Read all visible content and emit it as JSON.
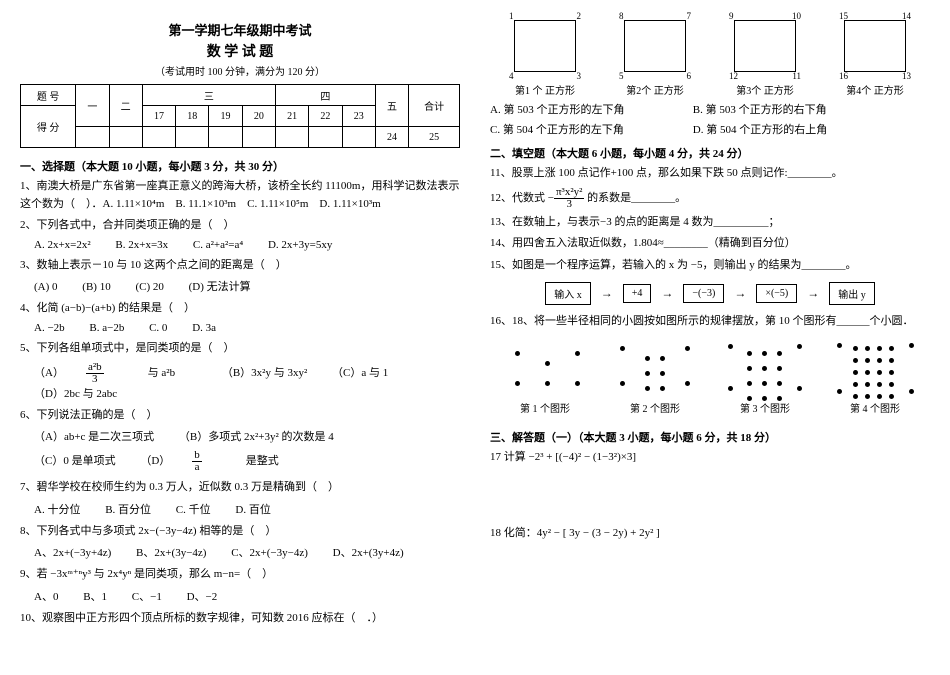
{
  "header": {
    "title": "第一学期七年级期中考试",
    "subject": "数 学 试 题",
    "note": "（考试用时 100 分钟，满分为 120 分）"
  },
  "scoreTable": {
    "r1": [
      "题 号",
      "一",
      "二",
      "三",
      "",
      "",
      "",
      "四",
      "",
      "",
      "五",
      "合计"
    ],
    "r2": [
      "得 分",
      "",
      "",
      "17",
      "18",
      "19",
      "20",
      "21",
      "22",
      "23",
      "24",
      "25"
    ],
    "r3": [
      "",
      "",
      "",
      "",
      "",
      "",
      "",
      "",
      "",
      "",
      "",
      ""
    ]
  },
  "section1": {
    "heading": "一、选择题（本大题 10 小题，每小题 3 分，共 30 分）",
    "q1": "1、南澳大桥是广东省第一座真正意义的跨海大桥，该桥全长约 11100m，用科学记数法表示这个数为（　）．A. 1.11×10⁴m　B. 11.1×10³m　C. 1.11×10⁵m　D. 1.11×10³m",
    "q2": "2、下列各式中，合并同类项正确的是（　）",
    "q2o": [
      "A. 2x+x=2x²",
      "B. 2x+x=3x",
      "C. a²+a²=a⁴",
      "D. 2x+3y=5xy"
    ],
    "q3": "3、数轴上表示－10 与 10 这两个点之间的距离是（　）",
    "q3o": [
      "(A) 0",
      "(B) 10",
      "(C) 20",
      "(D) 无法计算"
    ],
    "q4": "4、化简 (a−b)−(a+b) 的结果是（　）",
    "q4o": [
      "A. −2b",
      "B. a−2b",
      "C. 0",
      "D. 3a"
    ],
    "q5": "5、下列各组单项式中，是同类项的是（　）",
    "q5o_a_pre": "（A）",
    "q5o_a_num": "a²b",
    "q5o_a_den": "3",
    "q5o_a_post": " 与 a²b",
    "q5o_b": "（B）3x²y 与 3xy²",
    "q5o_c": "（C）a 与 1",
    "q5o_d": "（D）2bc 与 2abc",
    "q6": "6、下列说法正确的是（　）",
    "q6a": "（A）ab+c 是二次三项式",
    "q6b": "（B）多项式 2x²+3y² 的次数是 4",
    "q6c": "（C）0 是单项式",
    "q6d_pre": "（D）",
    "q6d_num": "b",
    "q6d_den": "a",
    "q6d_post": " 是整式",
    "q7": "7、碧华学校在校师生约为 0.3 万人，近似数 0.3 万是精确到（　）",
    "q7o": [
      "A. 十分位",
      "B. 百分位",
      "C. 千位",
      "D. 百位"
    ],
    "q8": "8、下列各式中与多项式 2x−(−3y−4z) 相等的是（　）",
    "q8o": [
      "A、2x+(−3y+4z)",
      "B、2x+(3y−4z)",
      "C、2x+(−3y−4z)",
      "D、2x+(3y+4z)"
    ],
    "q9": "9、若 −3xᵐ⁺ⁿy³ 与 2x⁴yⁿ 是同类项，那么 m−n=（　）",
    "q9o": [
      "A、0",
      "B、1",
      "C、−1",
      "D、−2"
    ],
    "q10": "10、观察图中正方形四个顶点所标的数字规律，可知数 2016 应标在（　．）"
  },
  "squares": [
    {
      "tl": "1",
      "tr": "2",
      "bl": "4",
      "br": "3",
      "lab": "第1 个\n正方形"
    },
    {
      "tl": "8",
      "tr": "7",
      "bl": "5",
      "br": "6",
      "lab": "第2个\n正方形"
    },
    {
      "tl": "9",
      "tr": "10",
      "bl": "12",
      "br": "11",
      "lab": "第3个\n正方形"
    },
    {
      "tl": "15",
      "tr": "14",
      "bl": "16",
      "br": "13",
      "lab": "第4个\n正方形"
    }
  ],
  "q10opts": {
    "a": "A. 第 503 个正方形的左下角",
    "b": "B. 第 503 个正方形的右下角",
    "c": "C. 第 504 个正方形的左下角",
    "d": "D. 第 504 个正方形的右上角"
  },
  "section2": {
    "heading": "二、填空题（本大题 6 小题，每小题 4 分，共 24 分）",
    "q11": "11、股票上涨 100 点记作+100 点，那么如果下跌 50 点则记作:________。",
    "q12_pre": "12、代数式 −",
    "q12_num": "π³x²y²",
    "q12_den": "3",
    "q12_post": " 的系数是________。",
    "q13": "13、在数轴上，与表示−3 的点的距离是 4 数为__________；",
    "q14": "14、用四舍五入法取近似数，1.804≈________（精确到百分位）",
    "q15": "15、如图是一个程序运算，若输入的 x 为 −5，则输出 y 的结果为________。"
  },
  "flow": [
    "输入 x",
    "+4",
    "−(−3)",
    "×(−5)",
    "输出 y"
  ],
  "q16": "16、18、将一些半径相同的小圆按如图所示的规律摆放，第 10 个图形有______个小圆．",
  "dotlabs": [
    "第 1 个图形",
    "第  2 个图形",
    "第 3 个图形",
    "第  4 个图形"
  ],
  "dotFigs": [
    [
      [
        10,
        40
      ],
      [
        70,
        40
      ],
      [
        40,
        20
      ],
      [
        40,
        40
      ],
      [
        10,
        10
      ],
      [
        70,
        10
      ]
    ],
    [
      [
        5,
        40
      ],
      [
        70,
        40
      ],
      [
        30,
        15
      ],
      [
        45,
        15
      ],
      [
        30,
        30
      ],
      [
        45,
        30
      ],
      [
        30,
        45
      ],
      [
        45,
        45
      ],
      [
        5,
        5
      ],
      [
        70,
        5
      ]
    ],
    [
      [
        3,
        45
      ],
      [
        72,
        45
      ],
      [
        22,
        10
      ],
      [
        37,
        10
      ],
      [
        52,
        10
      ],
      [
        22,
        25
      ],
      [
        37,
        25
      ],
      [
        52,
        25
      ],
      [
        22,
        40
      ],
      [
        37,
        40
      ],
      [
        52,
        40
      ],
      [
        22,
        55
      ],
      [
        37,
        55
      ],
      [
        52,
        55
      ],
      [
        3,
        3
      ],
      [
        72,
        3
      ]
    ],
    [
      [
        2,
        48
      ],
      [
        74,
        48
      ],
      [
        18,
        5
      ],
      [
        30,
        5
      ],
      [
        42,
        5
      ],
      [
        54,
        5
      ],
      [
        18,
        17
      ],
      [
        30,
        17
      ],
      [
        42,
        17
      ],
      [
        54,
        17
      ],
      [
        18,
        29
      ],
      [
        30,
        29
      ],
      [
        42,
        29
      ],
      [
        54,
        29
      ],
      [
        18,
        41
      ],
      [
        30,
        41
      ],
      [
        42,
        41
      ],
      [
        54,
        41
      ],
      [
        18,
        53
      ],
      [
        30,
        53
      ],
      [
        42,
        53
      ],
      [
        54,
        53
      ],
      [
        2,
        2
      ],
      [
        74,
        2
      ]
    ]
  ],
  "section3": {
    "heading": "三、解答题（一）（本大题 3 小题，每小题 6 分，共 18 分）",
    "q17": "17 计算 −2³ + [(−4)² − (1−3²)×3]",
    "q18": "18 化简：4y² − [ 3y − (3 − 2y) + 2y² ]"
  }
}
